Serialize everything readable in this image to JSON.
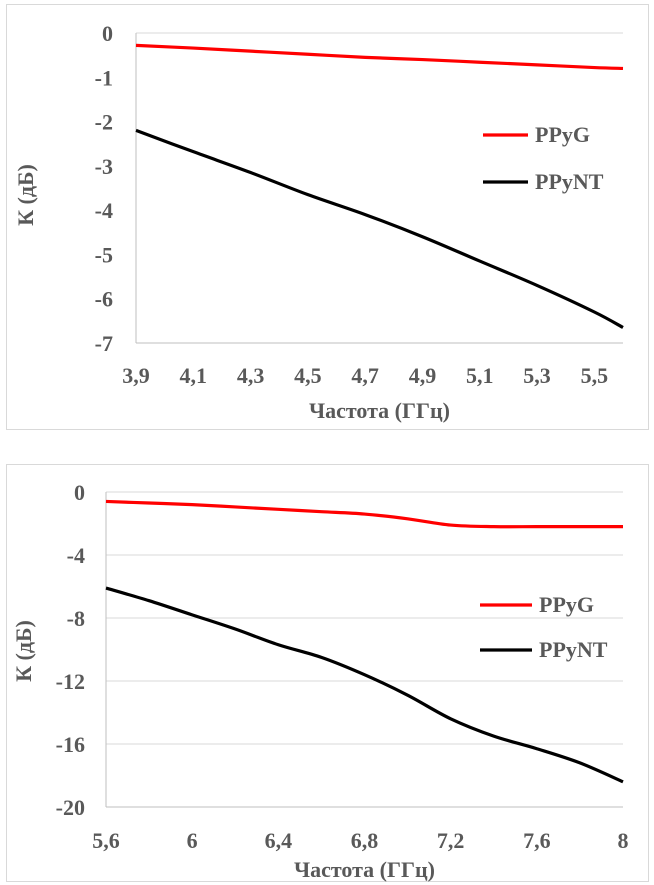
{
  "chart_data": [
    {
      "type": "line",
      "title": "",
      "xlabel": "Частота (ГГц)",
      "ylabel": "К (дБ)",
      "x": [
        3.9,
        4.1,
        4.3,
        4.5,
        4.7,
        4.9,
        5.1,
        5.3,
        5.5,
        5.6
      ],
      "x_tick_labels": [
        "3,9",
        "4,1",
        "4,3",
        "4,5",
        "4,7",
        "4,9",
        "5,1",
        "5,3",
        "5,5"
      ],
      "x_tick_values": [
        3.9,
        4.1,
        4.3,
        4.5,
        4.7,
        4.9,
        5.1,
        5.3,
        5.5
      ],
      "xlim": [
        3.9,
        5.6
      ],
      "ylim": [
        -7,
        0
      ],
      "y_ticks": [
        0,
        -1,
        -2,
        -3,
        -4,
        -5,
        -6,
        -7
      ],
      "y_tick_labels": [
        "0",
        "-1",
        "-2",
        "-3",
        "-4",
        "-5",
        "-6",
        "-7"
      ],
      "grid": false,
      "legend_position": "right",
      "series": [
        {
          "name": "PPyG",
          "color": "#ff0000",
          "values": [
            -0.28,
            -0.34,
            -0.41,
            -0.48,
            -0.55,
            -0.6,
            -0.66,
            -0.72,
            -0.78,
            -0.8
          ]
        },
        {
          "name": "PPyNT",
          "color": "#000000",
          "values": [
            -2.2,
            -2.68,
            -3.15,
            -3.65,
            -4.1,
            -4.6,
            -5.15,
            -5.7,
            -6.3,
            -6.65
          ]
        }
      ]
    },
    {
      "type": "line",
      "title": "",
      "xlabel": "Частота (ГГц)",
      "ylabel": "К (дБ)",
      "x": [
        5.6,
        5.8,
        6.0,
        6.2,
        6.4,
        6.6,
        6.8,
        7.0,
        7.2,
        7.4,
        7.6,
        7.8,
        8.0
      ],
      "x_tick_labels": [
        "5,6",
        "6",
        "6,4",
        "6,8",
        "7,2",
        "7,6",
        "8"
      ],
      "x_tick_values": [
        5.6,
        6.0,
        6.4,
        6.8,
        7.2,
        7.6,
        8.0
      ],
      "xlim": [
        5.6,
        8.0
      ],
      "ylim": [
        -20,
        0
      ],
      "y_ticks": [
        0,
        -4,
        -8,
        -12,
        -16,
        -20
      ],
      "y_tick_labels": [
        "0",
        "-4",
        "-8",
        "-12",
        "-16",
        "-20"
      ],
      "grid": true,
      "legend_position": "right",
      "series": [
        {
          "name": "PPyG",
          "color": "#ff0000",
          "values": [
            -0.6,
            -0.7,
            -0.8,
            -0.95,
            -1.1,
            -1.25,
            -1.4,
            -1.7,
            -2.1,
            -2.2,
            -2.2,
            -2.2,
            -2.2
          ]
        },
        {
          "name": "PPyNT",
          "color": "#000000",
          "values": [
            -6.1,
            -6.9,
            -7.8,
            -8.7,
            -9.7,
            -10.5,
            -11.6,
            -12.9,
            -14.4,
            -15.5,
            -16.3,
            -17.2,
            -18.4
          ]
        }
      ]
    }
  ]
}
